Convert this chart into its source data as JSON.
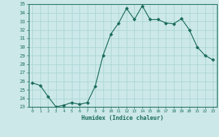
{
  "x": [
    0,
    1,
    2,
    3,
    4,
    5,
    6,
    7,
    8,
    9,
    10,
    11,
    12,
    13,
    14,
    15,
    16,
    17,
    18,
    19,
    20,
    21,
    22,
    23
  ],
  "y": [
    25.8,
    25.5,
    24.2,
    23.0,
    23.2,
    23.5,
    23.3,
    23.5,
    25.4,
    29.0,
    31.5,
    32.8,
    34.5,
    33.2,
    34.8,
    33.2,
    33.2,
    32.8,
    32.7,
    33.3,
    32.0,
    30.0,
    29.0,
    28.5
  ],
  "line_color": "#1a6b5a",
  "marker": "D",
  "marker_size": 2.5,
  "bg_color": "#cce8e8",
  "grid_color": "#aad4d4",
  "xlabel": "Humidex (Indice chaleur)",
  "ylim": [
    23,
    35
  ],
  "xlim": [
    -0.5,
    23.5
  ],
  "yticks": [
    23,
    24,
    25,
    26,
    27,
    28,
    29,
    30,
    31,
    32,
    33,
    34,
    35
  ],
  "xticks": [
    0,
    1,
    2,
    3,
    4,
    5,
    6,
    7,
    8,
    9,
    10,
    11,
    12,
    13,
    14,
    15,
    16,
    17,
    18,
    19,
    20,
    21,
    22,
    23
  ]
}
